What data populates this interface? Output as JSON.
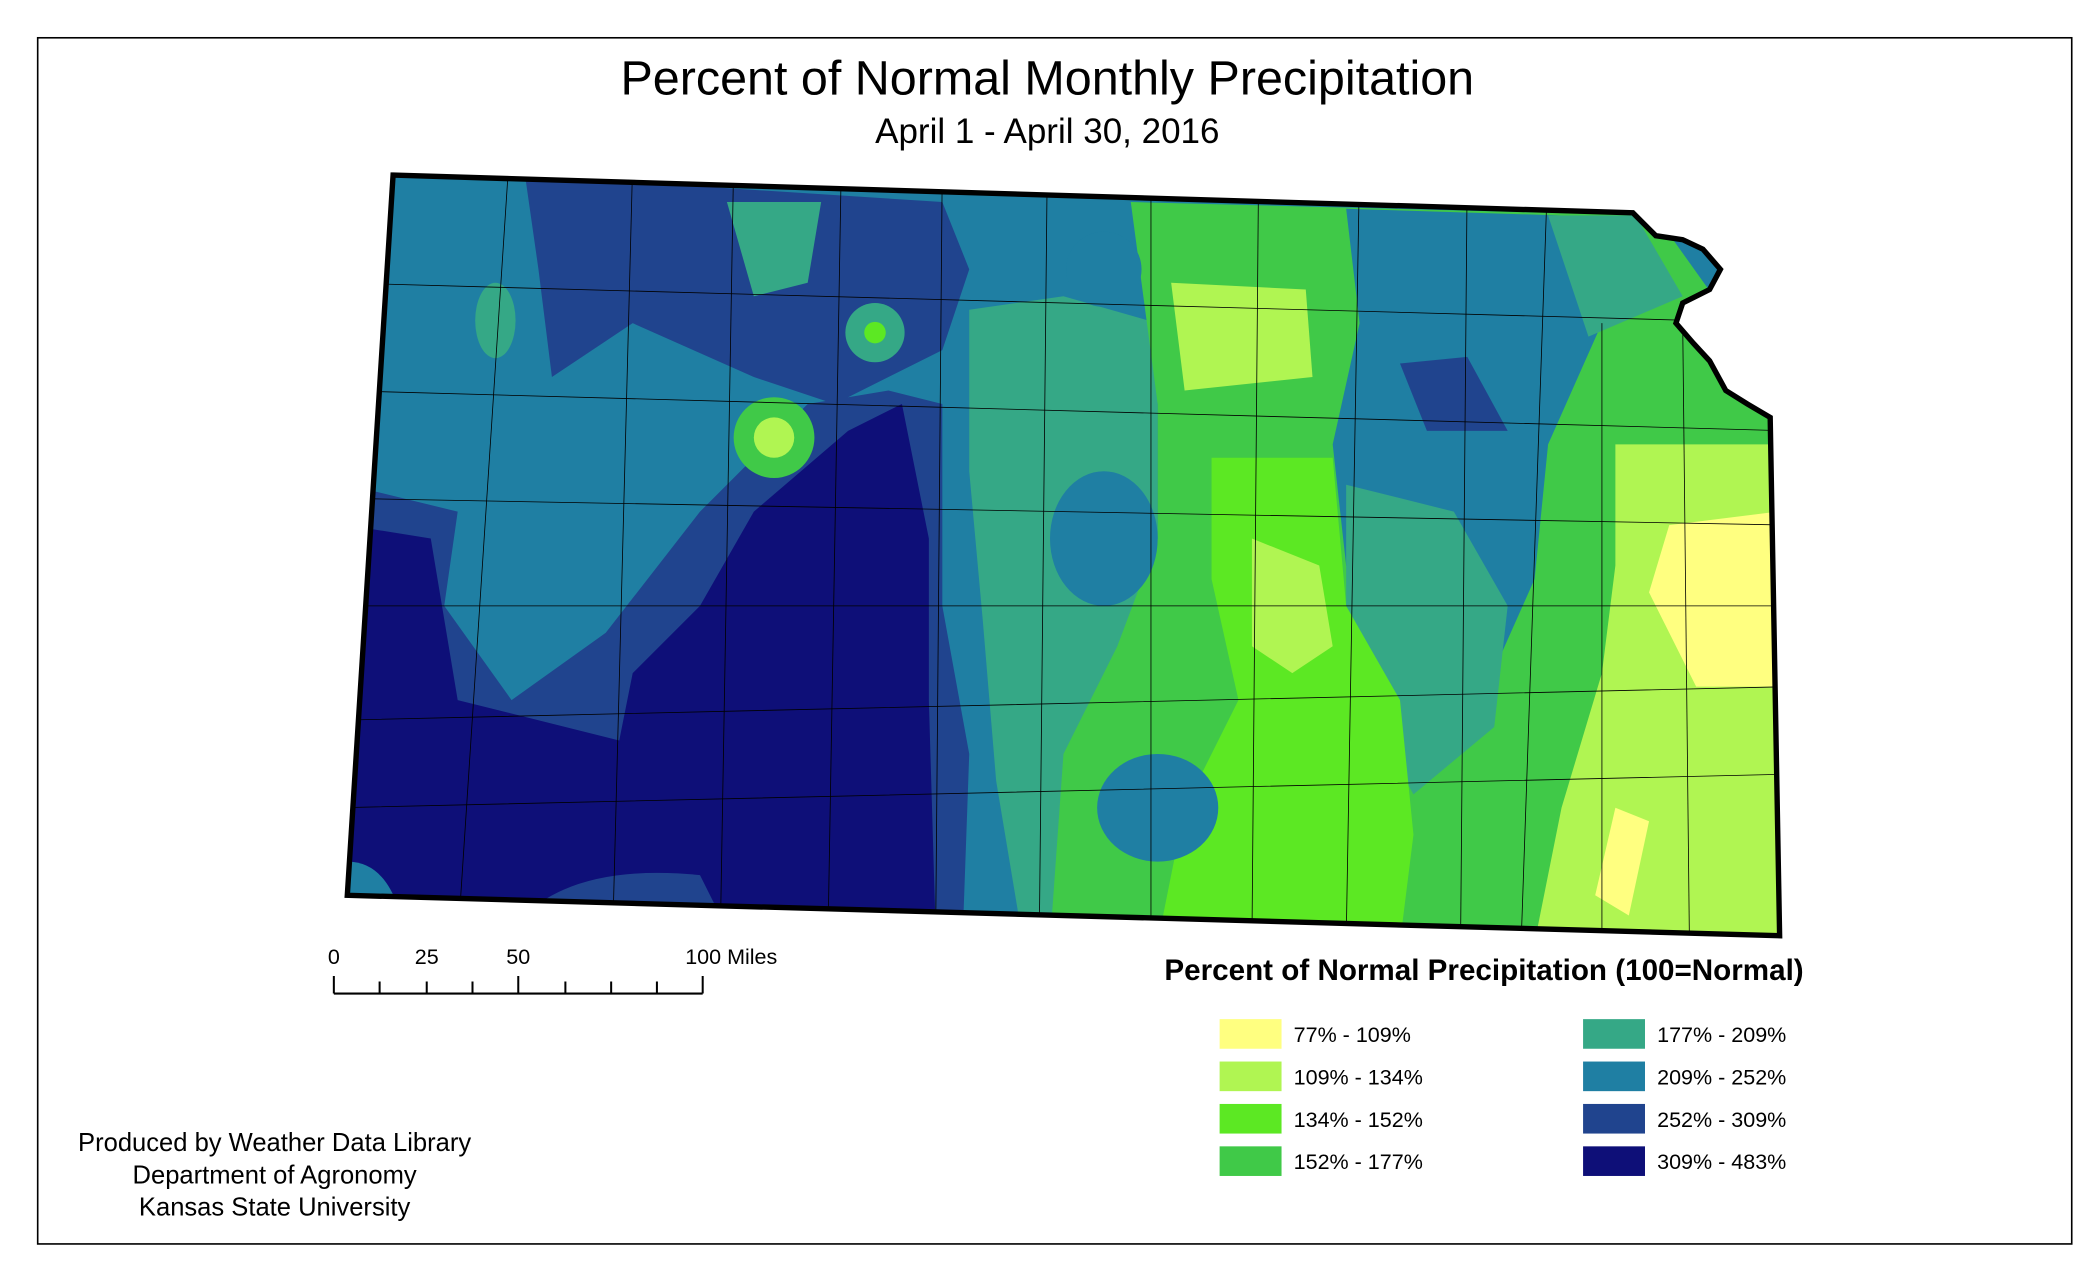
{
  "title": "Percent of Normal Monthly Precipitation",
  "subtitle": "April 1 - April 30, 2016",
  "scale_bar": {
    "labels": [
      "0",
      "25",
      "50",
      "100 Miles"
    ]
  },
  "legend": {
    "title": "Percent of Normal Precipitation (100=Normal)",
    "items": [
      {
        "label": "77% - 109%",
        "color": "#FFFF80"
      },
      {
        "label": "109% - 134%",
        "color": "#B0F552"
      },
      {
        "label": "134% - 152%",
        "color": "#5CE823"
      },
      {
        "label": "152% - 177%",
        "color": "#40C948"
      },
      {
        "label": "177% - 209%",
        "color": "#35A886"
      },
      {
        "label": "209% - 252%",
        "color": "#1F7FA3"
      },
      {
        "label": "252% - 309%",
        "color": "#20448E"
      },
      {
        "label": "309% - 483%",
        "color": "#0E0F78"
      }
    ]
  },
  "credits": [
    "Produced by Weather Data Library",
    "Department of Agronomy",
    "Kansas State University"
  ]
}
